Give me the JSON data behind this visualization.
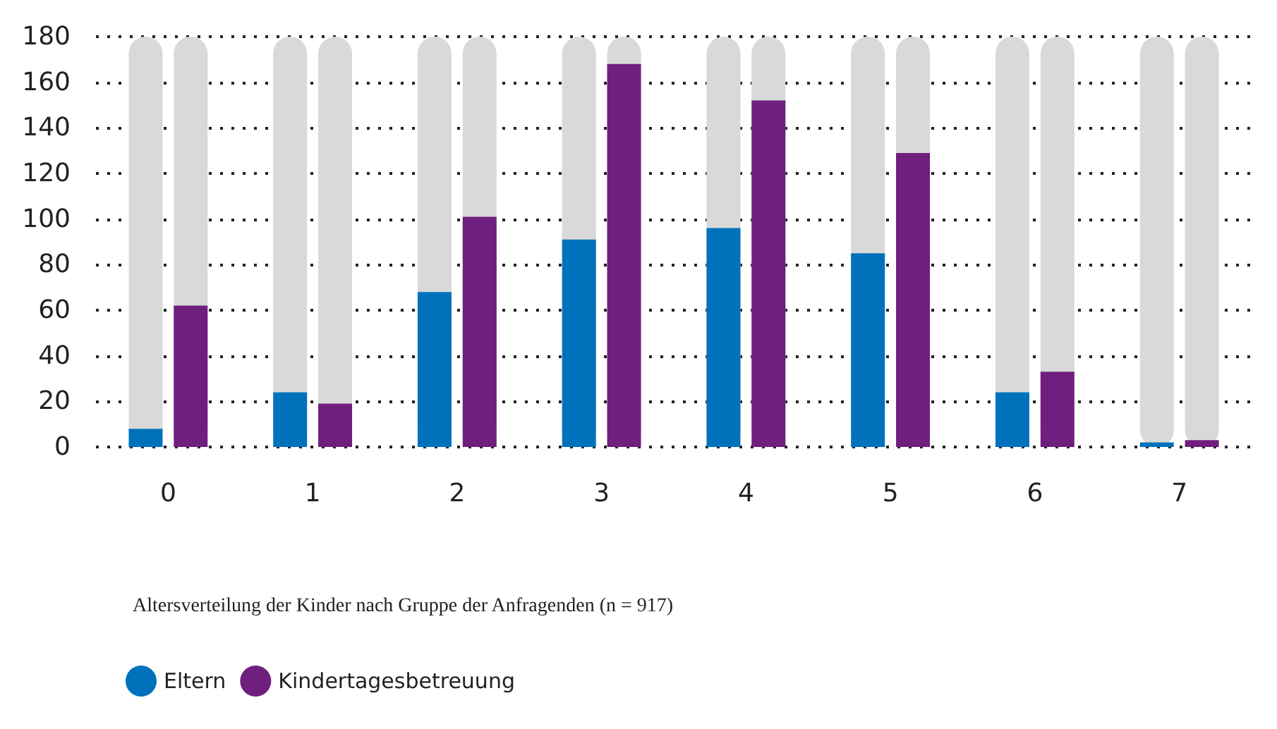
{
  "chart_data": {
    "type": "bar",
    "categories": [
      "0",
      "1",
      "2",
      "3",
      "4",
      "5",
      "6",
      "7"
    ],
    "series": [
      {
        "name": "Eltern",
        "color": "#0072bc",
        "values": [
          8,
          24,
          68,
          91,
          96,
          85,
          24,
          2
        ]
      },
      {
        "name": "Kindertagesbetreuung",
        "color": "#6f1f7e",
        "values": [
          62,
          19,
          101,
          168,
          152,
          129,
          33,
          3
        ]
      }
    ],
    "ylim": [
      0,
      180
    ],
    "yticks": [
      0,
      20,
      40,
      60,
      80,
      100,
      120,
      140,
      160,
      180
    ],
    "grid": "y",
    "legend": "bottom left",
    "annotations": [
      "Altersverteilung der Kinder nach Gruppe der Anfragenden (n = 917)"
    ]
  }
}
